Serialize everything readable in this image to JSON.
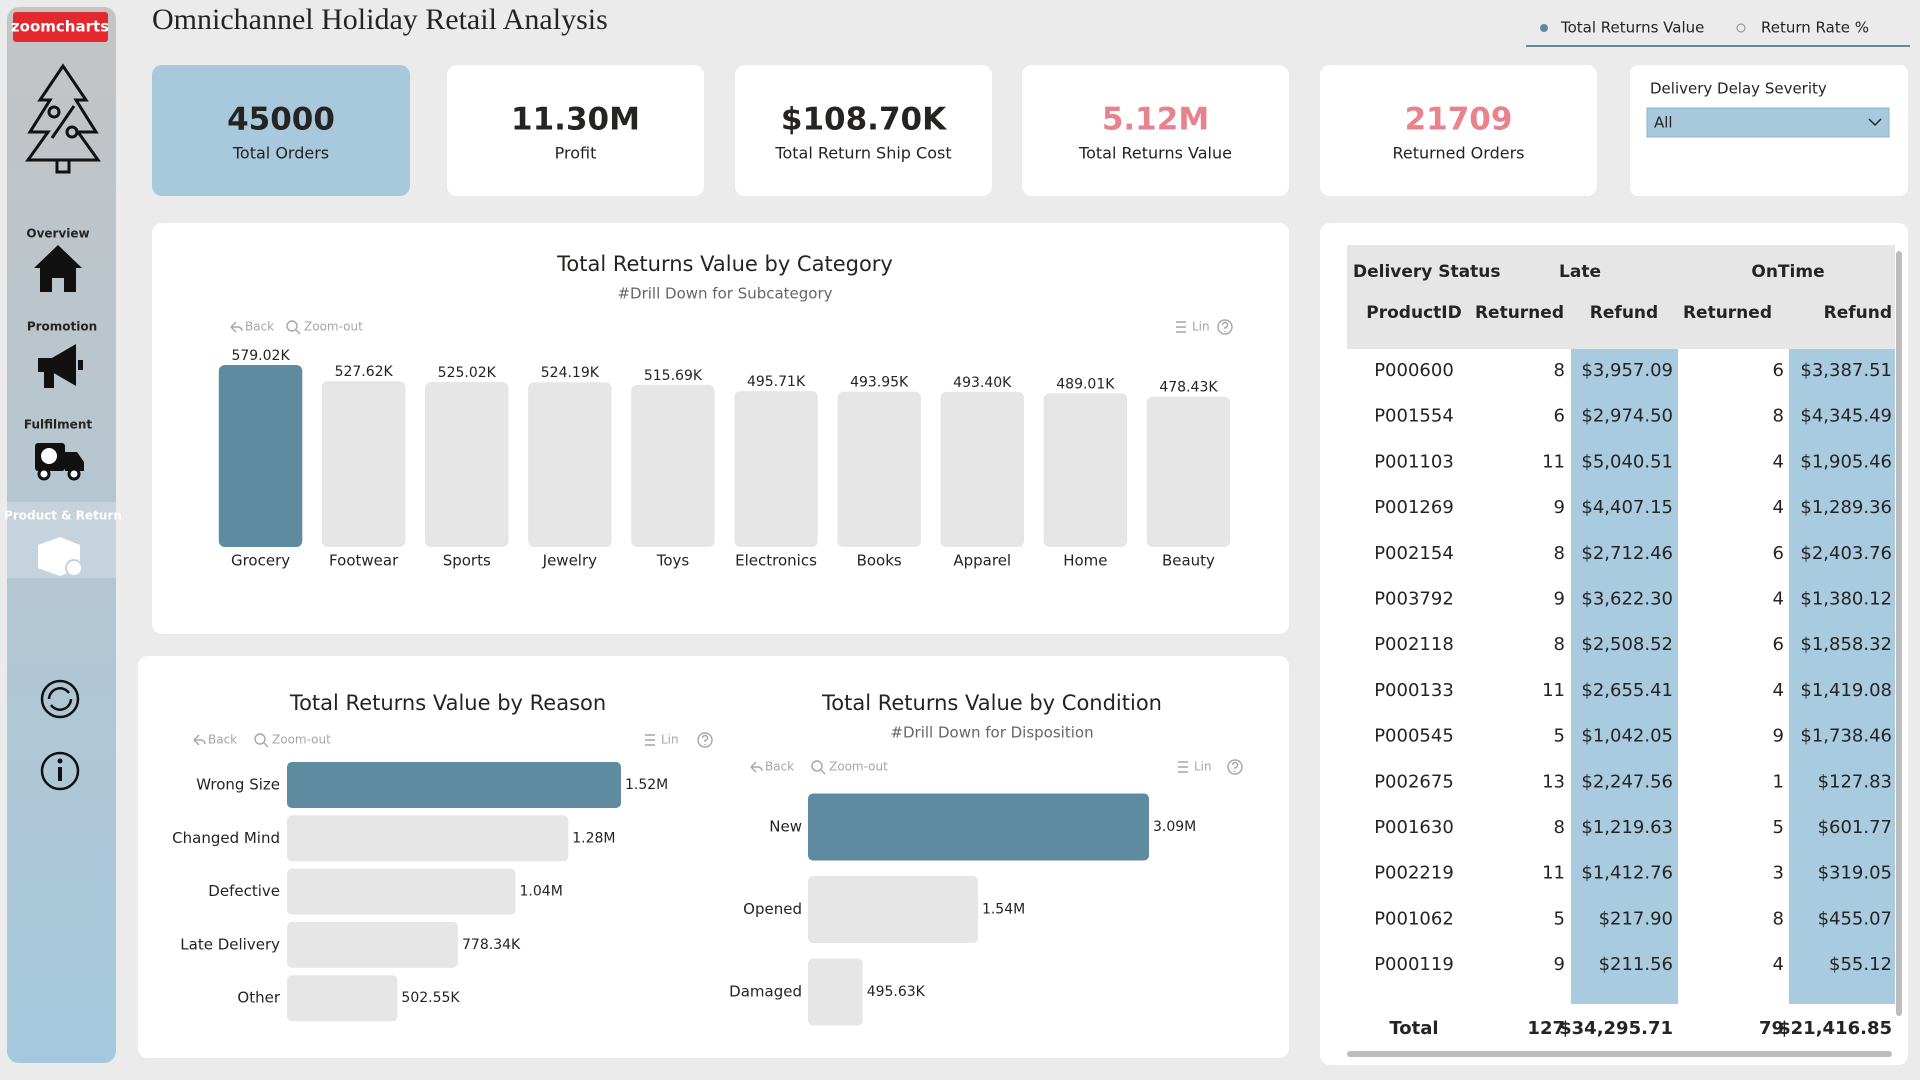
{
  "header": {
    "logo": "zoomcharts",
    "title": "Omnichannel Holiday Retail Analysis"
  },
  "toggle": {
    "options": [
      "Total Returns Value",
      "Return Rate %"
    ],
    "selected": 0
  },
  "nav": [
    "Overview",
    "Promotion",
    "Fulfilment",
    "Product & Return"
  ],
  "kpis": [
    {
      "value": "45000",
      "label": "Total Orders",
      "color": "#252423",
      "background": "#a8c8dc"
    },
    {
      "value": "11.30M",
      "label": "Profit",
      "color": "#252423",
      "background": "#ffffff"
    },
    {
      "value": "$108.70K",
      "label": "Total Return Ship Cost",
      "color": "#252423",
      "background": "#ffffff"
    },
    {
      "value": "5.12M",
      "label": "Total Returns Value",
      "color": "#e8828c",
      "background": "#ffffff"
    },
    {
      "value": "21709",
      "label": "Returned Orders",
      "color": "#e8828c",
      "background": "#ffffff"
    }
  ],
  "filter": {
    "label": "Delivery Delay Severity",
    "value": "All"
  },
  "toolbar": [
    "Back",
    "Zoom-out",
    "Lin"
  ],
  "chart_data": [
    {
      "type": "bar",
      "orientation": "vertical",
      "title": "Total Returns Value by Category",
      "subtitle": "#Drill Down for Subcategory",
      "categories": [
        "Grocery",
        "Footwear",
        "Sports",
        "Jewelry",
        "Toys",
        "Electronics",
        "Books",
        "Apparel",
        "Home",
        "Beauty"
      ],
      "values": [
        579020,
        527620,
        525020,
        524190,
        515690,
        495710,
        493950,
        493400,
        489010,
        478430
      ],
      "value_labels": [
        "579.02K",
        "527.62K",
        "525.02K",
        "524.19K",
        "515.69K",
        "495.71K",
        "493.95K",
        "493.40K",
        "489.01K",
        "478.43K"
      ],
      "colors": [
        "#5f8ba1",
        "#e6e6e6",
        "#e6e6e6",
        "#e6e6e6",
        "#e6e6e6",
        "#e6e6e6",
        "#e6e6e6",
        "#e6e6e6",
        "#e6e6e6",
        "#e6e6e6"
      ]
    },
    {
      "type": "bar",
      "orientation": "horizontal",
      "title": "Total Returns Value by Reason",
      "categories": [
        "Wrong Size",
        "Changed Mind",
        "Defective",
        "Late Delivery",
        "Other"
      ],
      "values": [
        1520000,
        1280000,
        1040000,
        778340,
        502550
      ],
      "value_labels": [
        "1.52M",
        "1.28M",
        "1.04M",
        "778.34K",
        "502.55K"
      ],
      "colors": [
        "#5f8ba1",
        "#e6e6e6",
        "#e6e6e6",
        "#e6e6e6",
        "#e6e6e6"
      ]
    },
    {
      "type": "bar",
      "orientation": "horizontal",
      "title": "Total Returns Value by Condition",
      "subtitle": "#Drill Down for Disposition",
      "categories": [
        "New",
        "Opened",
        "Damaged"
      ],
      "values": [
        3090000,
        1540000,
        495630
      ],
      "value_labels": [
        "3.09M",
        "1.54M",
        "495.63K"
      ],
      "colors": [
        "#5f8ba1",
        "#e6e6e6",
        "#e6e6e6"
      ]
    }
  ],
  "table": {
    "groups": [
      "Delivery Status",
      "Late",
      "OnTime"
    ],
    "columns": [
      "ProductID",
      "Returned",
      "Refund",
      "Returned",
      "Refund"
    ],
    "rows": [
      [
        "P000600",
        "8",
        "$3,957.09",
        "6",
        "$3,387.51"
      ],
      [
        "P001554",
        "6",
        "$2,974.50",
        "8",
        "$4,345.49"
      ],
      [
        "P001103",
        "11",
        "$5,040.51",
        "4",
        "$1,905.46"
      ],
      [
        "P001269",
        "9",
        "$4,407.15",
        "4",
        "$1,289.36"
      ],
      [
        "P002154",
        "8",
        "$2,712.46",
        "6",
        "$2,403.76"
      ],
      [
        "P003792",
        "9",
        "$3,622.30",
        "4",
        "$1,380.12"
      ],
      [
        "P002118",
        "8",
        "$2,508.52",
        "6",
        "$1,858.32"
      ],
      [
        "P000133",
        "11",
        "$2,655.41",
        "4",
        "$1,419.08"
      ],
      [
        "P000545",
        "5",
        "$1,042.05",
        "9",
        "$1,738.46"
      ],
      [
        "P002675",
        "13",
        "$2,247.56",
        "1",
        "$127.83"
      ],
      [
        "P001630",
        "8",
        "$1,219.63",
        "5",
        "$601.77"
      ],
      [
        "P002219",
        "11",
        "$1,412.76",
        "3",
        "$319.05"
      ],
      [
        "P001062",
        "5",
        "$217.90",
        "8",
        "$455.07"
      ],
      [
        "P000119",
        "9",
        "$211.56",
        "4",
        "$55.12"
      ]
    ],
    "total": [
      "Total",
      "127",
      "$34,295.71",
      "79",
      "$21,416.85"
    ]
  }
}
